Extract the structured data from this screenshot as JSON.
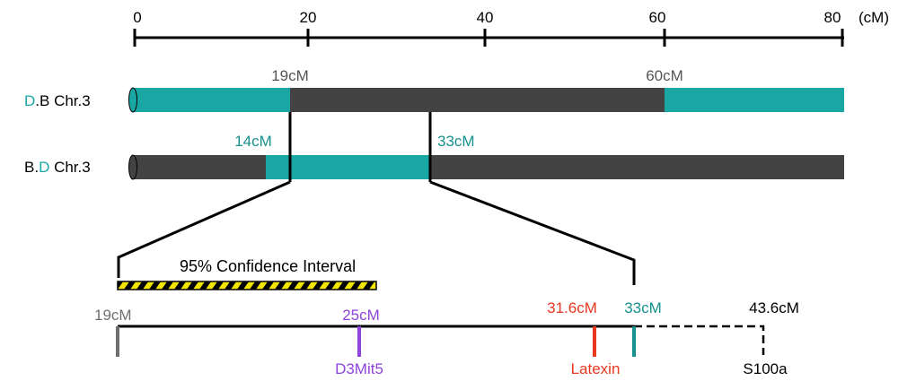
{
  "scale": {
    "ticks": [
      {
        "value": 0,
        "label": "0"
      },
      {
        "value": 20,
        "label": "20"
      },
      {
        "value": 40,
        "label": "40"
      },
      {
        "value": 60,
        "label": "60"
      },
      {
        "value": 80,
        "label": "80"
      }
    ],
    "unit_label": "(cM)"
  },
  "chromosomes": [
    {
      "id": "db",
      "label_prefix": "D",
      "label_mid": ".B Chr.3",
      "label_suffix": "",
      "segments": [
        {
          "start": 0,
          "end": 18,
          "kind": "D"
        },
        {
          "start": 18,
          "end": 60.5,
          "kind": "B"
        },
        {
          "start": 60.5,
          "end": 80.5,
          "kind": "D"
        }
      ],
      "marks": [
        {
          "text": "19cM",
          "color": "#555555"
        },
        {
          "text": "60cM",
          "color": "#555555"
        }
      ]
    },
    {
      "id": "bd",
      "label_prefix": "B.",
      "label_mid": "D",
      "label_suffix": " Chr.3",
      "segments": [
        {
          "start": 0,
          "end": 15,
          "kind": "B"
        },
        {
          "start": 15,
          "end": 34,
          "kind": "D"
        },
        {
          "start": 34,
          "end": 80.5,
          "kind": "B"
        }
      ],
      "marks": [
        {
          "text": "14cM",
          "color": "#17908e"
        },
        {
          "text": "33cM",
          "color": "#17908e"
        }
      ]
    }
  ],
  "confidence_interval": {
    "label": "95% Confidence Interval"
  },
  "markers": [
    {
      "id": "start",
      "position_label": "19cM",
      "name": "",
      "color": "#6f6f6f"
    },
    {
      "id": "d3mit5",
      "position_label": "25cM",
      "name": "D3Mit5",
      "color": "#8e44dd"
    },
    {
      "id": "latexin",
      "position_label": "31.6cM",
      "name": "Latexin",
      "color": "#e8381f"
    },
    {
      "id": "end",
      "position_label": "33cM",
      "name": "",
      "color": "#17908e"
    },
    {
      "id": "s100a",
      "position_label": "43.6cM",
      "name": "S100a",
      "color": "#000000"
    }
  ],
  "colors": {
    "d_strain": "#1aa6a3",
    "b_strain": "#434343",
    "d_label": "#1aa6a3",
    "ci_stripe_yellow": "#f2e600",
    "ci_stripe_black": "#000000",
    "line": "#000000"
  }
}
